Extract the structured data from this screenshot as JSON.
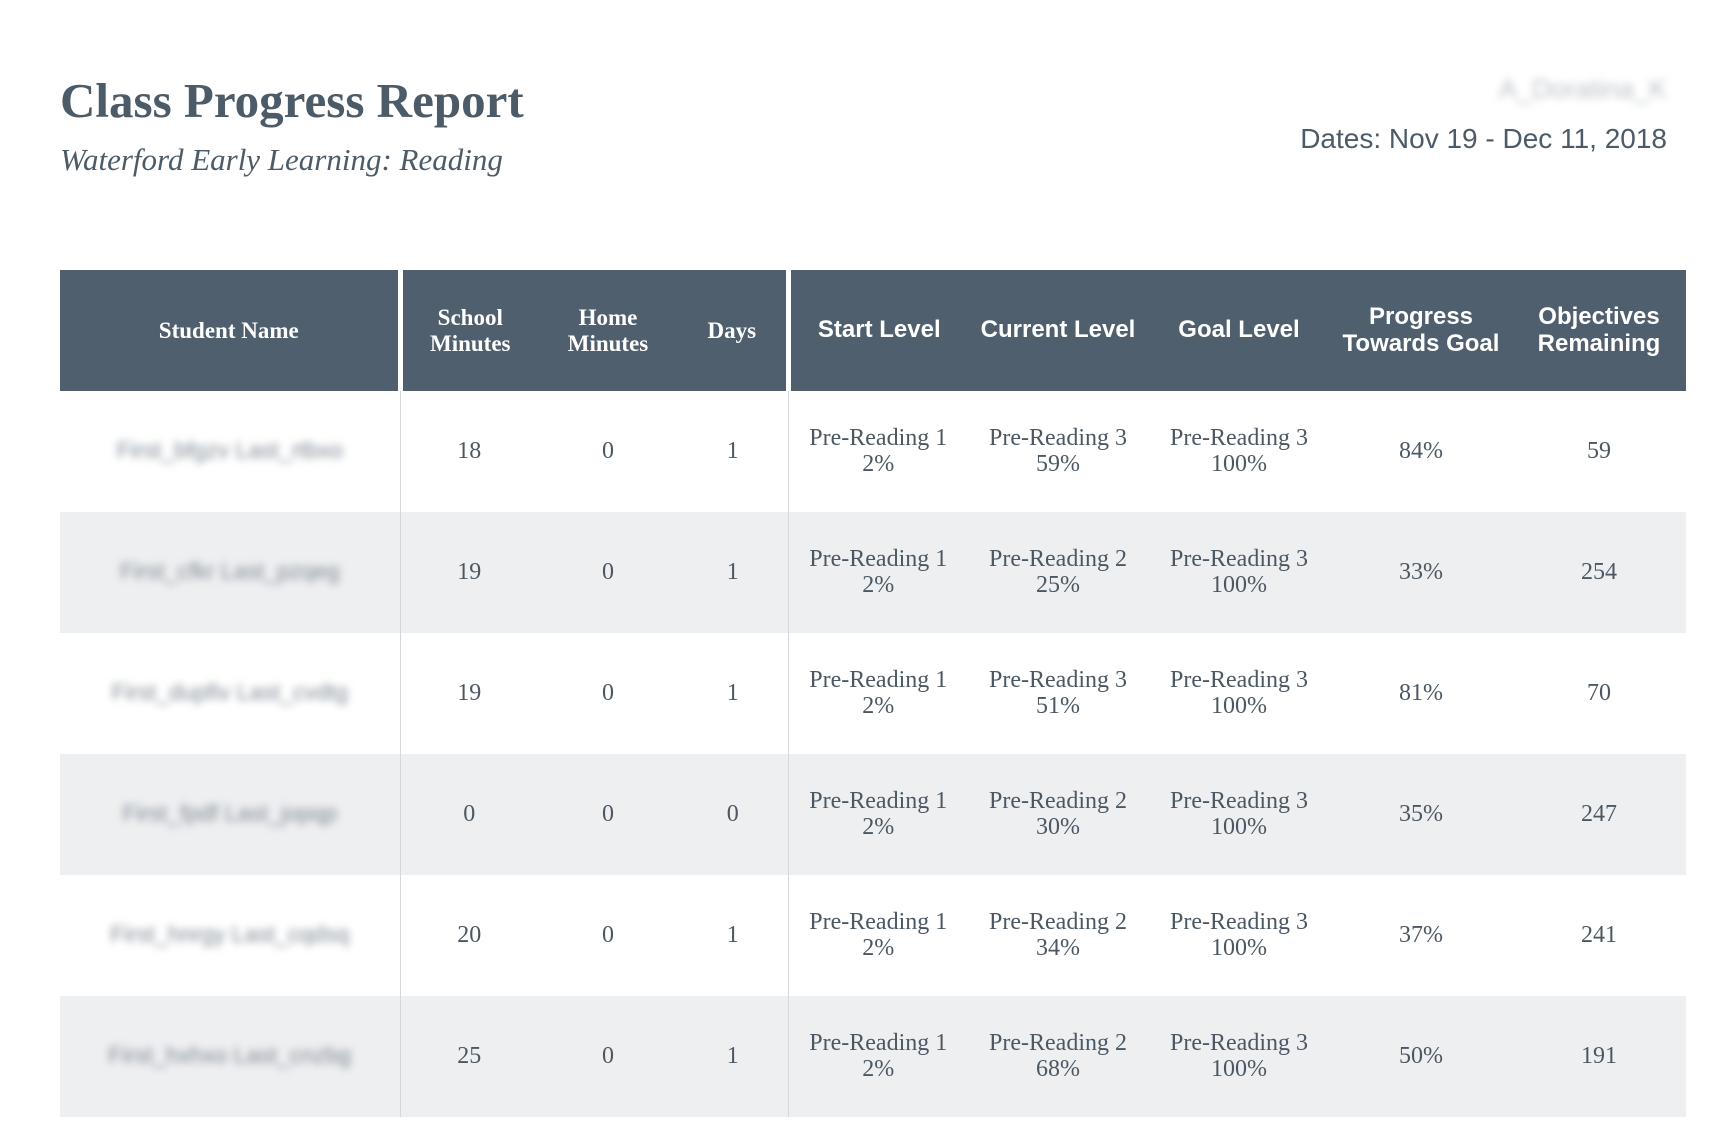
{
  "report": {
    "title": "Class Progress Report",
    "subtitle": "Waterford Early Learning: Reading",
    "teacher": "A_Doratina_K",
    "dates": "Dates: Nov 19 - Dec 11, 2018"
  },
  "table": {
    "headers": {
      "student_name": "Student Name",
      "school_minutes": "School Minutes",
      "home_minutes": "Home Minutes",
      "days": "Days",
      "start_level": "Start Level",
      "current_level": "Current Level",
      "goal_level": "Goal Level",
      "progress": "Progress Towards Goal",
      "objectives": "Objectives Remaining"
    },
    "rows": [
      {
        "name": "First_bfgzv Last_rtbxo",
        "school_minutes": "18",
        "home_minutes": "0",
        "days": "1",
        "start_level": "Pre-Reading 1",
        "start_pct": "2%",
        "current_level": "Pre-Reading 3",
        "current_pct": "59%",
        "goal_level": "Pre-Reading 3",
        "goal_pct": "100%",
        "progress": "84%",
        "objectives": "59"
      },
      {
        "name": "First_cfkr Last_pzqeg",
        "school_minutes": "19",
        "home_minutes": "0",
        "days": "1",
        "start_level": "Pre-Reading 1",
        "start_pct": "2%",
        "current_level": "Pre-Reading 2",
        "current_pct": "25%",
        "goal_level": "Pre-Reading 3",
        "goal_pct": "100%",
        "progress": "33%",
        "objectives": "254"
      },
      {
        "name": "First_dupfiv Last_cvdtg",
        "school_minutes": "19",
        "home_minutes": "0",
        "days": "1",
        "start_level": "Pre-Reading 1",
        "start_pct": "2%",
        "current_level": "Pre-Reading 3",
        "current_pct": "51%",
        "goal_level": "Pre-Reading 3",
        "goal_pct": "100%",
        "progress": "81%",
        "objectives": "70"
      },
      {
        "name": "First_fpdf Last_jopqp",
        "school_minutes": "0",
        "home_minutes": "0",
        "days": "0",
        "start_level": "Pre-Reading 1",
        "start_pct": "2%",
        "current_level": "Pre-Reading 2",
        "current_pct": "30%",
        "goal_level": "Pre-Reading 3",
        "goal_pct": "100%",
        "progress": "35%",
        "objectives": "247"
      },
      {
        "name": "First_hnrgy Last_cqdsq",
        "school_minutes": "20",
        "home_minutes": "0",
        "days": "1",
        "start_level": "Pre-Reading 1",
        "start_pct": "2%",
        "current_level": "Pre-Reading 2",
        "current_pct": "34%",
        "goal_level": "Pre-Reading 3",
        "goal_pct": "100%",
        "progress": "37%",
        "objectives": "241"
      },
      {
        "name": "First_hxhxo Last_cnzbg",
        "school_minutes": "25",
        "home_minutes": "0",
        "days": "1",
        "start_level": "Pre-Reading 1",
        "start_pct": "2%",
        "current_level": "Pre-Reading 2",
        "current_pct": "68%",
        "goal_level": "Pre-Reading 3",
        "goal_pct": "100%",
        "progress": "50%",
        "objectives": "191"
      }
    ]
  }
}
